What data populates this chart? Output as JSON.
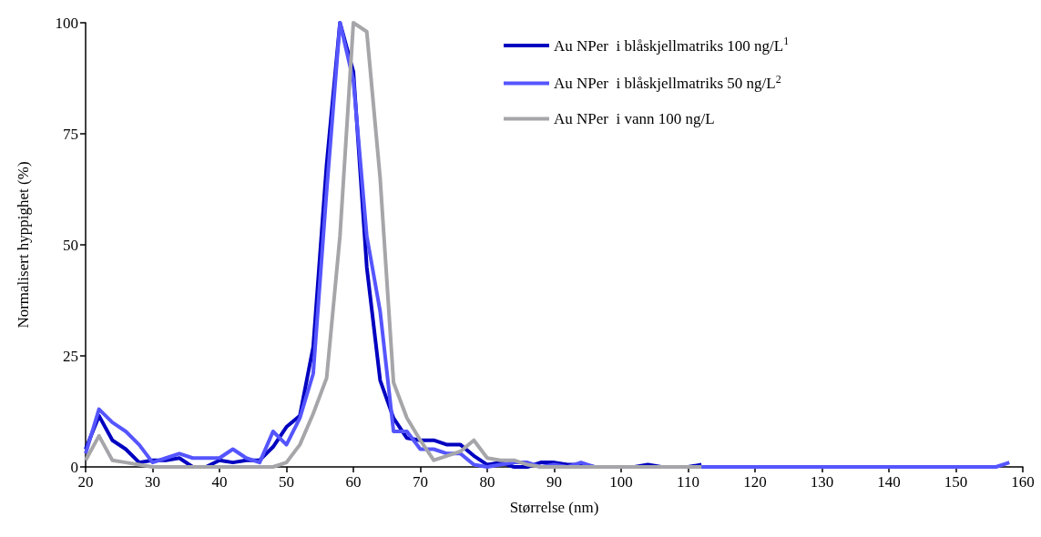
{
  "chart_data": {
    "type": "line",
    "xlabel": "Størrelse (nm)",
    "ylabel": "Normalisert hyppighet (%)",
    "xlim": [
      20,
      160
    ],
    "xticks": [
      20,
      30,
      40,
      50,
      60,
      70,
      80,
      90,
      100,
      110,
      120,
      130,
      140,
      150,
      160
    ],
    "ylim": [
      0,
      100
    ],
    "yticks": [
      0,
      25,
      50,
      75,
      100
    ],
    "grid": false,
    "legend": "top right",
    "marker": "none",
    "line_style": "solid",
    "series": [
      {
        "name": "Au NPer  i blåskjellmatriks 100 ng/L$^{1}$",
        "color": "#0000c0",
        "x": [
          20,
          22,
          24,
          26,
          28,
          30,
          32,
          34,
          36,
          38,
          40,
          42,
          44,
          46,
          48,
          50,
          52,
          54,
          56,
          58,
          60,
          62,
          64,
          66,
          68,
          70,
          72,
          74,
          76,
          78,
          80,
          82,
          84,
          86,
          88,
          90,
          92,
          94,
          96,
          98,
          100,
          102,
          104,
          106,
          108,
          110,
          112
        ],
        "values": [
          4,
          11.5,
          6,
          4,
          1,
          1.5,
          1.5,
          2,
          0,
          0,
          1.5,
          1,
          1.5,
          1.5,
          4.5,
          9,
          11.5,
          27,
          68,
          100,
          89,
          45,
          19.5,
          11,
          6.5,
          6,
          6,
          5,
          5,
          2.5,
          0.5,
          1,
          0,
          0,
          1,
          1,
          0.5,
          0.5,
          0,
          0,
          0,
          0,
          0.5,
          0,
          0,
          0,
          0.5
        ]
      },
      {
        "name": "Au NPer  i blåskjellmatriks 50 ng/L$^{2}$",
        "color": "#5555ff",
        "x": [
          20,
          22,
          24,
          26,
          28,
          30,
          32,
          34,
          36,
          38,
          40,
          42,
          44,
          46,
          48,
          50,
          52,
          54,
          56,
          58,
          60,
          62,
          64,
          66,
          68,
          70,
          72,
          74,
          76,
          78,
          80,
          82,
          84,
          86,
          88,
          90,
          92,
          94,
          96,
          100,
          110,
          120,
          130,
          140,
          150,
          156,
          158
        ],
        "values": [
          3,
          13,
          10,
          8,
          5,
          1,
          2,
          3,
          2,
          2,
          2,
          4,
          2,
          1,
          8,
          5,
          11,
          21,
          62,
          100,
          87,
          52,
          35,
          8,
          8,
          4,
          4,
          3,
          3,
          0.5,
          0,
          0.5,
          1,
          1,
          0,
          0.5,
          0,
          1,
          0,
          0,
          0,
          0,
          0,
          0,
          0,
          0,
          1
        ]
      },
      {
        "name": "Au NPer  i vann 100 ng/L",
        "color": "#a6a6aa",
        "x": [
          20,
          22,
          24,
          26,
          28,
          30,
          32,
          34,
          36,
          38,
          40,
          42,
          44,
          46,
          48,
          50,
          52,
          54,
          56,
          58,
          60,
          62,
          64,
          66,
          68,
          70,
          72,
          74,
          76,
          78,
          80,
          82,
          84,
          86,
          88,
          90,
          100,
          112
        ],
        "values": [
          1.5,
          7,
          1.5,
          1,
          0.5,
          0,
          0,
          0,
          0,
          0,
          0,
          0,
          0,
          0,
          0,
          1,
          5,
          12,
          20,
          52,
          100,
          98,
          65,
          19,
          11,
          6,
          1.5,
          2.5,
          3.5,
          6,
          2,
          1.5,
          1.5,
          0.5,
          0,
          0,
          0,
          0
        ]
      }
    ]
  }
}
